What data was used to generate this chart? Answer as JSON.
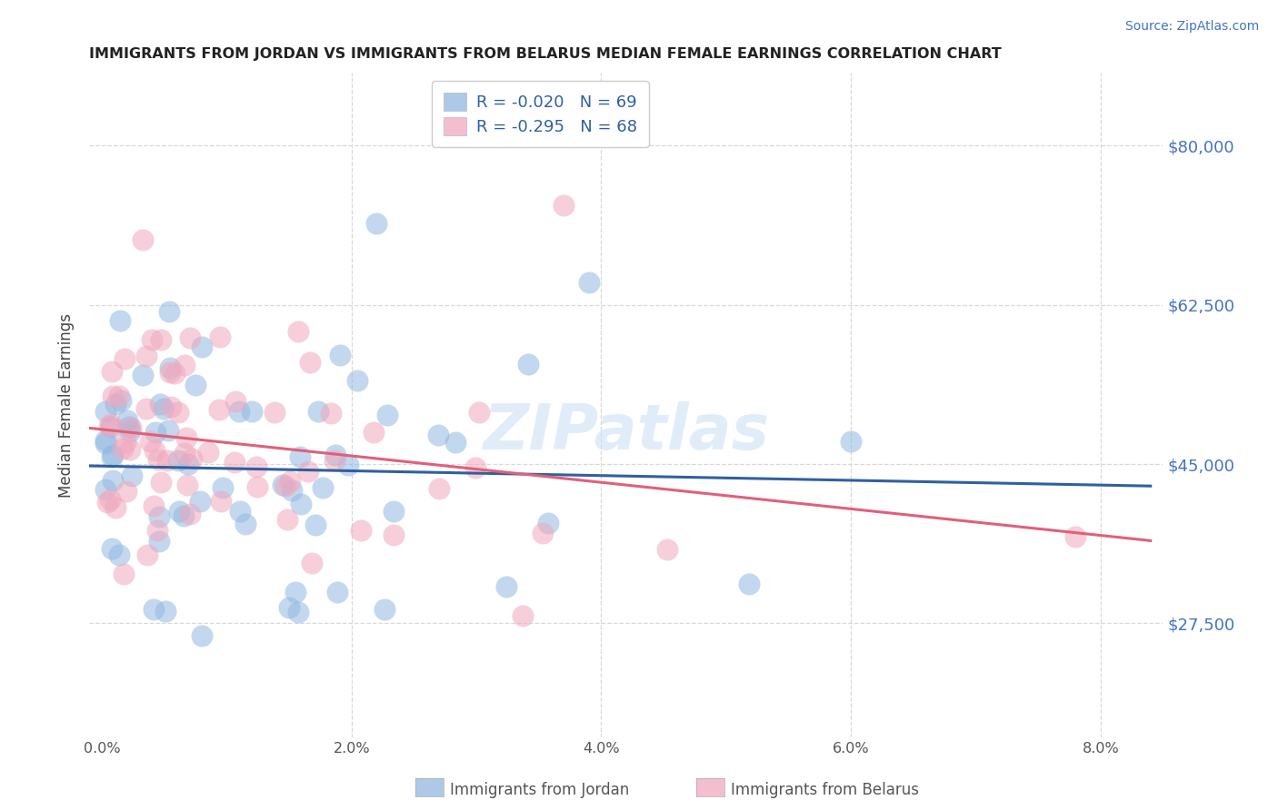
{
  "title": "IMMIGRANTS FROM JORDAN VS IMMIGRANTS FROM BELARUS MEDIAN FEMALE EARNINGS CORRELATION CHART",
  "source": "Source: ZipAtlas.com",
  "ylabel": "Median Female Earnings",
  "xlabel_ticks": [
    "0.0%",
    "2.0%",
    "4.0%",
    "6.0%",
    "8.0%"
  ],
  "xlabel_values": [
    0.0,
    0.02,
    0.04,
    0.06,
    0.08
  ],
  "ytick_labels": [
    "$27,500",
    "$45,000",
    "$62,500",
    "$80,000"
  ],
  "ytick_values": [
    27500,
    45000,
    62500,
    80000
  ],
  "ylim": [
    15000,
    88000
  ],
  "xlim": [
    -0.001,
    0.085
  ],
  "jordan_color": "#92b8e0",
  "belarus_color": "#f0a8be",
  "jordan_line_color": "#3060a0",
  "belarus_line_color": "#e0607a",
  "jordan_R": -0.02,
  "jordan_N": 69,
  "belarus_R": -0.295,
  "belarus_N": 68,
  "watermark": "ZIPatlas",
  "background_color": "#ffffff",
  "grid_color": "#d8d8d8",
  "legend_text_color": "#3060a0",
  "legend_R_color": "#3060a0"
}
